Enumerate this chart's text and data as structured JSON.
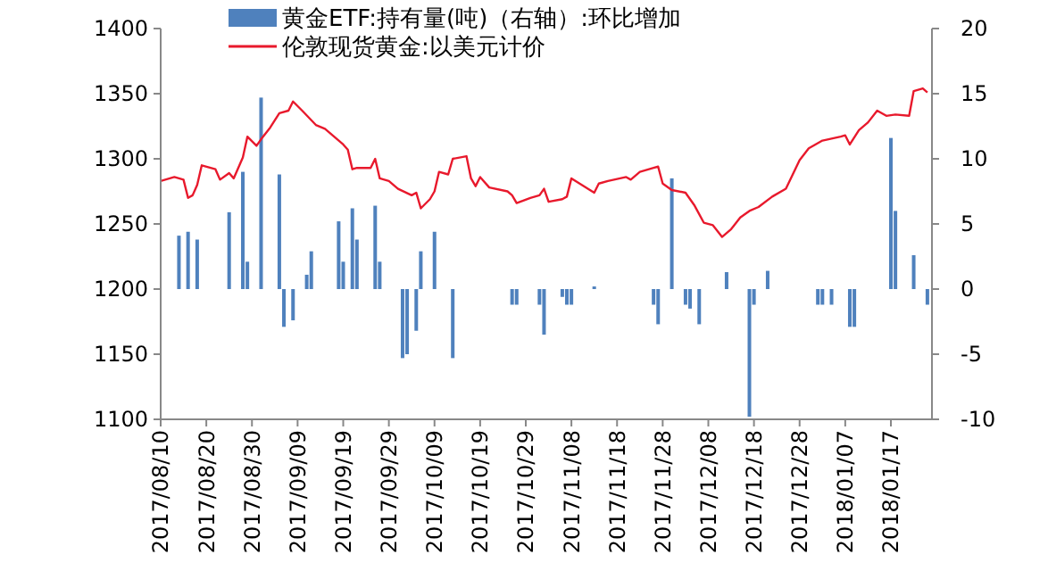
{
  "chart_data": {
    "type": "line",
    "legend": "top",
    "ylim": [
      1100,
      1400
    ],
    "yticks": [
      1100,
      1150,
      1200,
      1250,
      1300,
      1350,
      1400
    ],
    "y2lim": [
      -10,
      20
    ],
    "y2ticks": [
      -10,
      -5,
      0,
      5,
      10,
      15,
      20
    ],
    "xlim": [
      "2017-08-10",
      "2018-01-26"
    ],
    "xticks": [
      {
        "value": "2017-08-10",
        "label": "2017/08/10"
      },
      {
        "value": "2017-08-20",
        "label": "2017/08/20"
      },
      {
        "value": "2017-08-30",
        "label": "2017/08/30"
      },
      {
        "value": "2017-09-09",
        "label": "2017/09/09"
      },
      {
        "value": "2017-09-19",
        "label": "2017/09/19"
      },
      {
        "value": "2017-09-29",
        "label": "2017/09/29"
      },
      {
        "value": "2017-10-09",
        "label": "2017/10/09"
      },
      {
        "value": "2017-10-19",
        "label": "2017/10/19"
      },
      {
        "value": "2017-10-29",
        "label": "2017/10/29"
      },
      {
        "value": "2017-11-08",
        "label": "2017/11/08"
      },
      {
        "value": "2017-11-18",
        "label": "2017/11/18"
      },
      {
        "value": "2017-11-28",
        "label": "2017/11/28"
      },
      {
        "value": "2017-12-08",
        "label": "2017/12/08"
      },
      {
        "value": "2017-12-18",
        "label": "2017/12/18"
      },
      {
        "value": "2017-12-28",
        "label": "2017/12/28"
      },
      {
        "value": "2018-01-07",
        "label": "2018/01/07"
      },
      {
        "value": "2018-01-17",
        "label": "2018/01/17"
      }
    ],
    "series": [
      {
        "name": "黄金ETF:持有量(吨)（右轴）:环比增加",
        "type": "bar",
        "axis": "y2",
        "color": "#4f81bd",
        "x": [
          "2017-08-14",
          "2017-08-16",
          "2017-08-18",
          "2017-08-25",
          "2017-08-28",
          "2017-08-29",
          "2017-09-01",
          "2017-09-05",
          "2017-09-06",
          "2017-09-08",
          "2017-09-11",
          "2017-09-12",
          "2017-09-18",
          "2017-09-19",
          "2017-09-21",
          "2017-09-22",
          "2017-09-26",
          "2017-09-27",
          "2017-10-02",
          "2017-10-03",
          "2017-10-05",
          "2017-10-06",
          "2017-10-09",
          "2017-10-13",
          "2017-10-26",
          "2017-10-27",
          "2017-11-01",
          "2017-11-02",
          "2017-11-06",
          "2017-11-07",
          "2017-11-08",
          "2017-11-13",
          "2017-11-26",
          "2017-11-27",
          "2017-11-30",
          "2017-12-03",
          "2017-12-04",
          "2017-12-06",
          "2017-12-12",
          "2017-12-17",
          "2017-12-18",
          "2017-12-21",
          "2018-01-01",
          "2018-01-02",
          "2018-01-04",
          "2018-01-08",
          "2018-01-09",
          "2018-01-17",
          "2018-01-18",
          "2018-01-22",
          "2018-01-25"
        ],
        "values": [
          4.1,
          4.4,
          3.8,
          5.9,
          9.0,
          2.1,
          14.7,
          8.8,
          -2.9,
          -2.4,
          1.1,
          2.9,
          5.2,
          2.1,
          6.2,
          3.8,
          6.4,
          2.1,
          -5.3,
          -5.0,
          -3.2,
          2.9,
          4.4,
          -5.3,
          -1.2,
          -1.2,
          -1.2,
          -3.5,
          -0.6,
          -1.2,
          -1.2,
          0.2,
          -1.2,
          -2.7,
          8.5,
          -1.2,
          -1.5,
          -2.7,
          1.3,
          -9.8,
          -1.2,
          1.4,
          -1.2,
          -1.2,
          -1.2,
          -2.9,
          -2.9,
          11.6,
          6.0,
          2.6,
          -1.2
        ]
      },
      {
        "name": "伦敦现货黄金:以美元计价",
        "color": "#e8192c",
        "x": [
          "2017-08-10",
          "2017-08-13",
          "2017-08-15",
          "2017-08-16",
          "2017-08-17",
          "2017-08-18",
          "2017-08-19",
          "2017-08-22",
          "2017-08-23",
          "2017-08-25",
          "2017-08-26",
          "2017-08-28",
          "2017-08-29",
          "2017-08-31",
          "2017-09-01",
          "2017-09-03",
          "2017-09-05",
          "2017-09-07",
          "2017-09-08",
          "2017-09-10",
          "2017-09-13",
          "2017-09-15",
          "2017-09-19",
          "2017-09-20",
          "2017-09-21",
          "2017-09-22",
          "2017-09-25",
          "2017-09-26",
          "2017-09-27",
          "2017-09-29",
          "2017-10-01",
          "2017-10-04",
          "2017-10-05",
          "2017-10-06",
          "2017-10-08",
          "2017-10-09",
          "2017-10-10",
          "2017-10-12",
          "2017-10-13",
          "2017-10-16",
          "2017-10-17",
          "2017-10-18",
          "2017-10-19",
          "2017-10-21",
          "2017-10-25",
          "2017-10-26",
          "2017-10-27",
          "2017-10-30",
          "2017-11-01",
          "2017-11-02",
          "2017-11-03",
          "2017-11-06",
          "2017-11-07",
          "2017-11-08",
          "2017-11-13",
          "2017-11-14",
          "2017-11-16",
          "2017-11-20",
          "2017-11-21",
          "2017-11-23",
          "2017-11-26",
          "2017-11-27",
          "2017-11-28",
          "2017-11-30",
          "2017-12-03",
          "2017-12-05",
          "2017-12-07",
          "2017-12-09",
          "2017-12-11",
          "2017-12-13",
          "2017-12-15",
          "2017-12-17",
          "2017-12-19",
          "2017-12-22",
          "2017-12-25",
          "2017-12-28",
          "2017-12-30",
          "2018-01-02",
          "2018-01-06",
          "2018-01-07",
          "2018-01-08",
          "2018-01-10",
          "2018-01-12",
          "2018-01-14",
          "2018-01-16",
          "2018-01-18",
          "2018-01-21",
          "2018-01-22",
          "2018-01-24",
          "2018-01-25"
        ],
        "values": [
          1283,
          1286,
          1284,
          1270,
          1272,
          1280,
          1295,
          1292,
          1284,
          1289,
          1285,
          1301,
          1317,
          1310,
          1315,
          1324,
          1335,
          1337,
          1344,
          1337,
          1326,
          1323,
          1311,
          1307,
          1292,
          1293,
          1293,
          1300,
          1285,
          1283,
          1277,
          1272,
          1274,
          1262,
          1269,
          1275,
          1290,
          1288,
          1300,
          1302,
          1285,
          1279,
          1286,
          1278,
          1275,
          1272,
          1266,
          1270,
          1272,
          1277,
          1267,
          1269,
          1271,
          1285,
          1274,
          1281,
          1283,
          1286,
          1284,
          1290,
          1293,
          1294,
          1281,
          1276,
          1274,
          1264,
          1251,
          1249,
          1240,
          1246,
          1255,
          1260,
          1263,
          1271,
          1277,
          1299,
          1308,
          1314,
          1317,
          1318,
          1311,
          1322,
          1328,
          1337,
          1333,
          1334,
          1333,
          1352,
          1354,
          1351
        ]
      }
    ]
  }
}
